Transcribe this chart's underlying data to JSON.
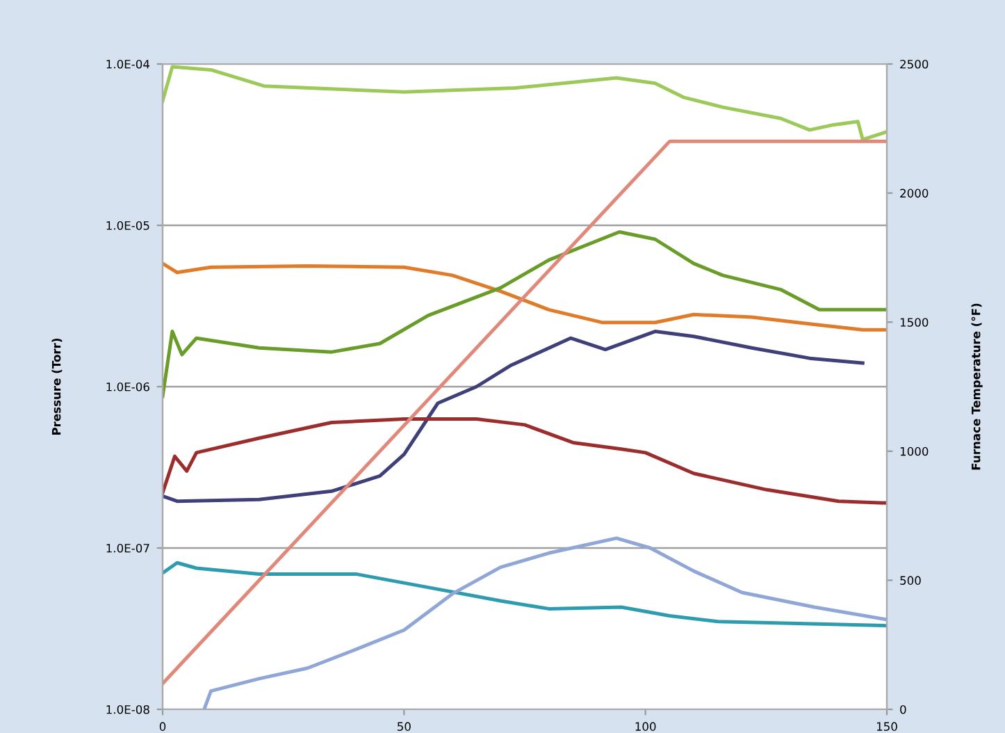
{
  "chart_data": {
    "type": "line",
    "ylabel": "Pressure (Torr)",
    "y2label": "Furnace Temperature (°F)",
    "log": "y",
    "grid": "y",
    "marker": "none",
    "line_style": "solid",
    "xlim": [
      0,
      150
    ],
    "xticks": [
      0,
      50,
      100,
      150
    ],
    "ylim": [
      1e-08,
      0.0001
    ],
    "yticks": [
      {
        "value": 1e-08,
        "label": "1.0E-08"
      },
      {
        "value": 1e-07,
        "label": "1.0E-07"
      },
      {
        "value": 1e-06,
        "label": "1.0E-06"
      },
      {
        "value": 1e-05,
        "label": "1.0E-05"
      },
      {
        "value": 0.0001,
        "label": "1.0E-04"
      }
    ],
    "y2lim": [
      0,
      2500
    ],
    "y2ticks": [
      0,
      500,
      1000,
      1500,
      2000,
      2500
    ],
    "series": [
      {
        "color": "#9dc85a",
        "x": [
          0,
          2,
          10,
          21,
          50,
          73,
          94,
          102,
          108,
          116,
          128,
          134,
          139,
          144,
          145,
          150
        ],
        "values": [
          5.9e-05,
          9.6e-05,
          9.2e-05,
          7.3e-05,
          6.7e-05,
          7.1e-05,
          8.2e-05,
          7.6e-05,
          6.2e-05,
          5.4e-05,
          4.6e-05,
          3.9e-05,
          4.2e-05,
          4.4e-05,
          3.4e-05,
          3.8e-05
        ]
      },
      {
        "color": "#e07b2a",
        "x": [
          0,
          3,
          10,
          30,
          50,
          60,
          70,
          80,
          91,
          102,
          110,
          122,
          134,
          145,
          150
        ],
        "values": [
          5.8e-06,
          5.1e-06,
          5.5e-06,
          5.6e-06,
          5.5e-06,
          4.9e-06,
          3.9e-06,
          3e-06,
          2.5e-06,
          2.5e-06,
          2.8e-06,
          2.7e-06,
          2.45e-06,
          2.25e-06,
          2.25e-06
        ]
      },
      {
        "color": "#6a9c2a",
        "x": [
          0,
          2,
          4,
          7,
          20,
          35,
          45,
          55,
          70,
          80,
          94.6,
          102,
          110,
          116,
          128,
          136,
          145,
          150
        ],
        "values": [
          8.7e-07,
          2.2e-06,
          1.58e-06,
          2e-06,
          1.74e-06,
          1.64e-06,
          1.85e-06,
          2.76e-06,
          4.1e-06,
          6.1e-06,
          9.1e-06,
          8.2e-06,
          5.8e-06,
          4.9e-06,
          4e-06,
          3e-06,
          3e-06,
          3e-06
        ]
      },
      {
        "color": "#3f3f7a",
        "x": [
          0,
          3,
          20,
          35,
          45,
          50,
          57,
          65,
          72,
          84.5,
          91.7,
          102,
          110,
          122,
          134,
          145
        ],
        "values": [
          2.1e-07,
          1.95e-07,
          2e-07,
          2.25e-07,
          2.8e-07,
          3.8e-07,
          7.9e-07,
          1e-06,
          1.35e-06,
          2e-06,
          1.7e-06,
          2.2e-06,
          2.05e-06,
          1.74e-06,
          1.5e-06,
          1.4e-06
        ]
      },
      {
        "color": "#9b2d2d",
        "x": [
          0,
          2.5,
          5,
          7,
          20,
          35,
          50,
          65,
          75,
          85,
          95,
          100,
          110,
          125,
          140,
          150
        ],
        "values": [
          2.2e-07,
          3.7e-07,
          3e-07,
          3.9e-07,
          4.8e-07,
          6e-07,
          6.3e-07,
          6.3e-07,
          5.8e-07,
          4.5e-07,
          4.1e-07,
          3.9e-07,
          2.9e-07,
          2.3e-07,
          1.95e-07,
          1.9e-07
        ]
      },
      {
        "color": "#2e9cae",
        "x": [
          0,
          3,
          7,
          20,
          40,
          55,
          70,
          80,
          95,
          105,
          115,
          150
        ],
        "values": [
          7e-08,
          8.1e-08,
          7.5e-08,
          6.9e-08,
          6.9e-08,
          5.7e-08,
          4.7e-08,
          4.2e-08,
          4.3e-08,
          3.8e-08,
          3.5e-08,
          3.3e-08
        ]
      },
      {
        "color": "#8fa6d6",
        "x": [
          8.6,
          10,
          20,
          30,
          40,
          50,
          60,
          70,
          80,
          94,
          101,
          110,
          120,
          135,
          150
        ],
        "values": [
          1e-08,
          1.3e-08,
          1.55e-08,
          1.8e-08,
          2.35e-08,
          3.1e-08,
          5.2e-08,
          7.6e-08,
          9.3e-08,
          1.15e-07,
          1e-07,
          7.2e-08,
          5.3e-08,
          4.3e-08,
          3.6e-08
        ]
      },
      {
        "color": "#e0887a",
        "axis": "y2",
        "x": [
          0,
          105,
          150
        ],
        "values": [
          100,
          2200,
          2200
        ]
      }
    ]
  }
}
